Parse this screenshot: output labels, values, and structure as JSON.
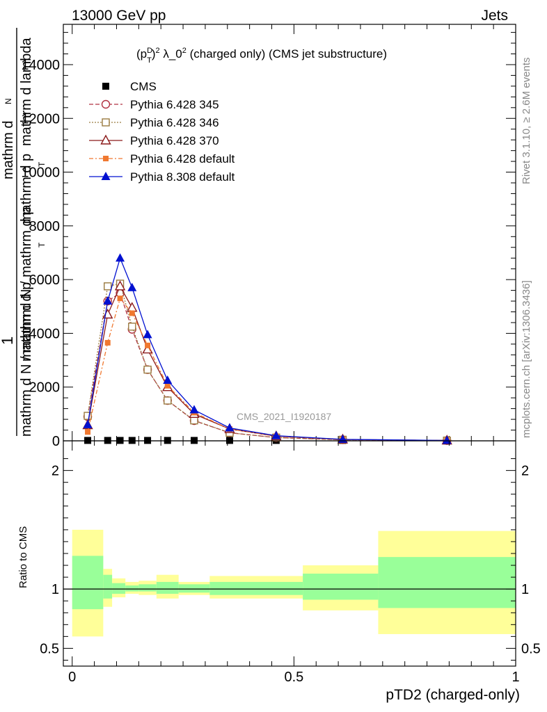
{
  "header": {
    "left": "13000 GeV pp",
    "right": "Jets",
    "side_top": "Rivet 3.1.10, ≥ 2.6M events",
    "side_bottom": "mcplots.cern.ch [arXiv:1306.3436]",
    "watermark": "CMS_2021_I1920187"
  },
  "chart_data": [
    {
      "type": "line",
      "panel": "main",
      "title_parts": {
        "base": "(p",
        "sup": "D",
        "sub": "T",
        "rest": ")",
        "sq": "2",
        "mid": " λ_0",
        "sq2": "2",
        "tail": " (charged only) (CMS jet substructure)"
      },
      "ylabel_top": "mathrm d",
      "ylabel_N": "N",
      "ylabel_dlambda": "mathrm d lambda",
      "ylabel_frac2": "mathrm d p",
      "ylabel_T": "T",
      "ylabel_mid": "mathrm d N / mathrm d p",
      "ylabel_one": "1",
      "ylabel_bottom": "mathrm d N / mathrm d p",
      "ylabel_sub": "T",
      "ylim": [
        0,
        15500
      ],
      "yticks": [
        {
          "v": 0,
          "label": "0"
        },
        {
          "v": 2000,
          "label": "2000"
        },
        {
          "v": 4000,
          "label": "4000"
        },
        {
          "v": 6000,
          "label": "6000"
        },
        {
          "v": 8000,
          "label": "8000"
        },
        {
          "v": 10000,
          "label": "10000"
        },
        {
          "v": 12000,
          "label": "12000"
        },
        {
          "v": 14000,
          "label": "14000"
        }
      ],
      "x": [
        0.035,
        0.08,
        0.108,
        0.135,
        0.17,
        0.215,
        0.275,
        0.355,
        0.46,
        0.61,
        0.845
      ],
      "series": [
        {
          "name": "CMS",
          "color": "#000000",
          "marker": "square-filled",
          "dash": "none",
          "values": [
            15,
            15,
            15,
            15,
            15,
            15,
            15,
            15,
            15,
            15,
            15
          ]
        },
        {
          "name": "Pythia 6.428 345",
          "color": "#b03040",
          "marker": "circle-open",
          "dash": "6,3",
          "values": [
            900,
            5200,
            5500,
            4150,
            2650,
            1500,
            750,
            300,
            120,
            40,
            10
          ]
        },
        {
          "name": "Pythia 6.428 346",
          "color": "#9a7a40",
          "marker": "square-open",
          "dash": "2,2",
          "values": [
            930,
            5750,
            5850,
            4250,
            2650,
            1500,
            760,
            300,
            120,
            40,
            10
          ]
        },
        {
          "name": "Pythia 6.428 370",
          "color": "#8b1a1a",
          "marker": "triangle-open",
          "dash": "none",
          "values": [
            580,
            4700,
            5750,
            4950,
            3400,
            2000,
            1000,
            440,
            170,
            50,
            12
          ]
        },
        {
          "name": "Pythia 6.428 default",
          "color": "#f07830",
          "marker": "square-filled-small",
          "dash": "6,3,2,3",
          "values": [
            330,
            3650,
            5300,
            4750,
            3550,
            2050,
            1050,
            440,
            170,
            50,
            12
          ]
        },
        {
          "name": "Pythia 8.308 default",
          "color": "#0010d0",
          "marker": "triangle-filled",
          "dash": "none",
          "values": [
            600,
            5200,
            6800,
            5700,
            3950,
            2250,
            1150,
            480,
            190,
            55,
            14
          ]
        }
      ]
    },
    {
      "type": "area",
      "panel": "ratio",
      "xlabel": "pTD2 (charged-only)",
      "ylabel": "Ratio to CMS",
      "ylim": [
        0.35,
        2.25
      ],
      "xlim": [
        -0.02,
        1.0
      ],
      "yticks": [
        {
          "v": 0.5,
          "label": "0.5"
        },
        {
          "v": 1,
          "label": "1"
        },
        {
          "v": 2,
          "label": "2"
        }
      ],
      "xticks": [
        {
          "v": 0,
          "label": "0"
        },
        {
          "v": 0.5,
          "label": "0.5"
        },
        {
          "v": 1,
          "label": "1"
        }
      ],
      "bins": [
        {
          "x0": 0.0,
          "x1": 0.07,
          "y_lo": 0.6,
          "y_hi": 1.5,
          "g_lo": 0.83,
          "g_hi": 1.28
        },
        {
          "x0": 0.07,
          "x1": 0.09,
          "y_lo": 0.85,
          "y_hi": 1.17,
          "g_lo": 0.92,
          "g_hi": 1.12
        },
        {
          "x0": 0.09,
          "x1": 0.12,
          "y_lo": 0.93,
          "y_hi": 1.09,
          "g_lo": 0.96,
          "g_hi": 1.05
        },
        {
          "x0": 0.12,
          "x1": 0.15,
          "y_lo": 0.96,
          "y_hi": 1.06,
          "g_lo": 0.98,
          "g_hi": 1.03
        },
        {
          "x0": 0.15,
          "x1": 0.19,
          "y_lo": 0.95,
          "y_hi": 1.07,
          "g_lo": 0.98,
          "g_hi": 1.04
        },
        {
          "x0": 0.19,
          "x1": 0.24,
          "y_lo": 0.92,
          "y_hi": 1.12,
          "g_lo": 0.96,
          "g_hi": 1.06
        },
        {
          "x0": 0.24,
          "x1": 0.31,
          "y_lo": 0.95,
          "y_hi": 1.06,
          "g_lo": 0.97,
          "g_hi": 1.04
        },
        {
          "x0": 0.31,
          "x1": 0.52,
          "y_lo": 0.92,
          "y_hi": 1.11,
          "g_lo": 0.95,
          "g_hi": 1.06
        },
        {
          "x0": 0.52,
          "x1": 0.69,
          "y_lo": 0.82,
          "y_hi": 1.2,
          "g_lo": 0.91,
          "g_hi": 1.13
        },
        {
          "x0": 0.69,
          "x1": 1.0,
          "y_lo": 0.62,
          "y_hi": 1.49,
          "g_lo": 0.84,
          "g_hi": 1.27
        }
      ],
      "colors": {
        "outer": "#ffff99",
        "inner": "#99ff99"
      }
    }
  ]
}
